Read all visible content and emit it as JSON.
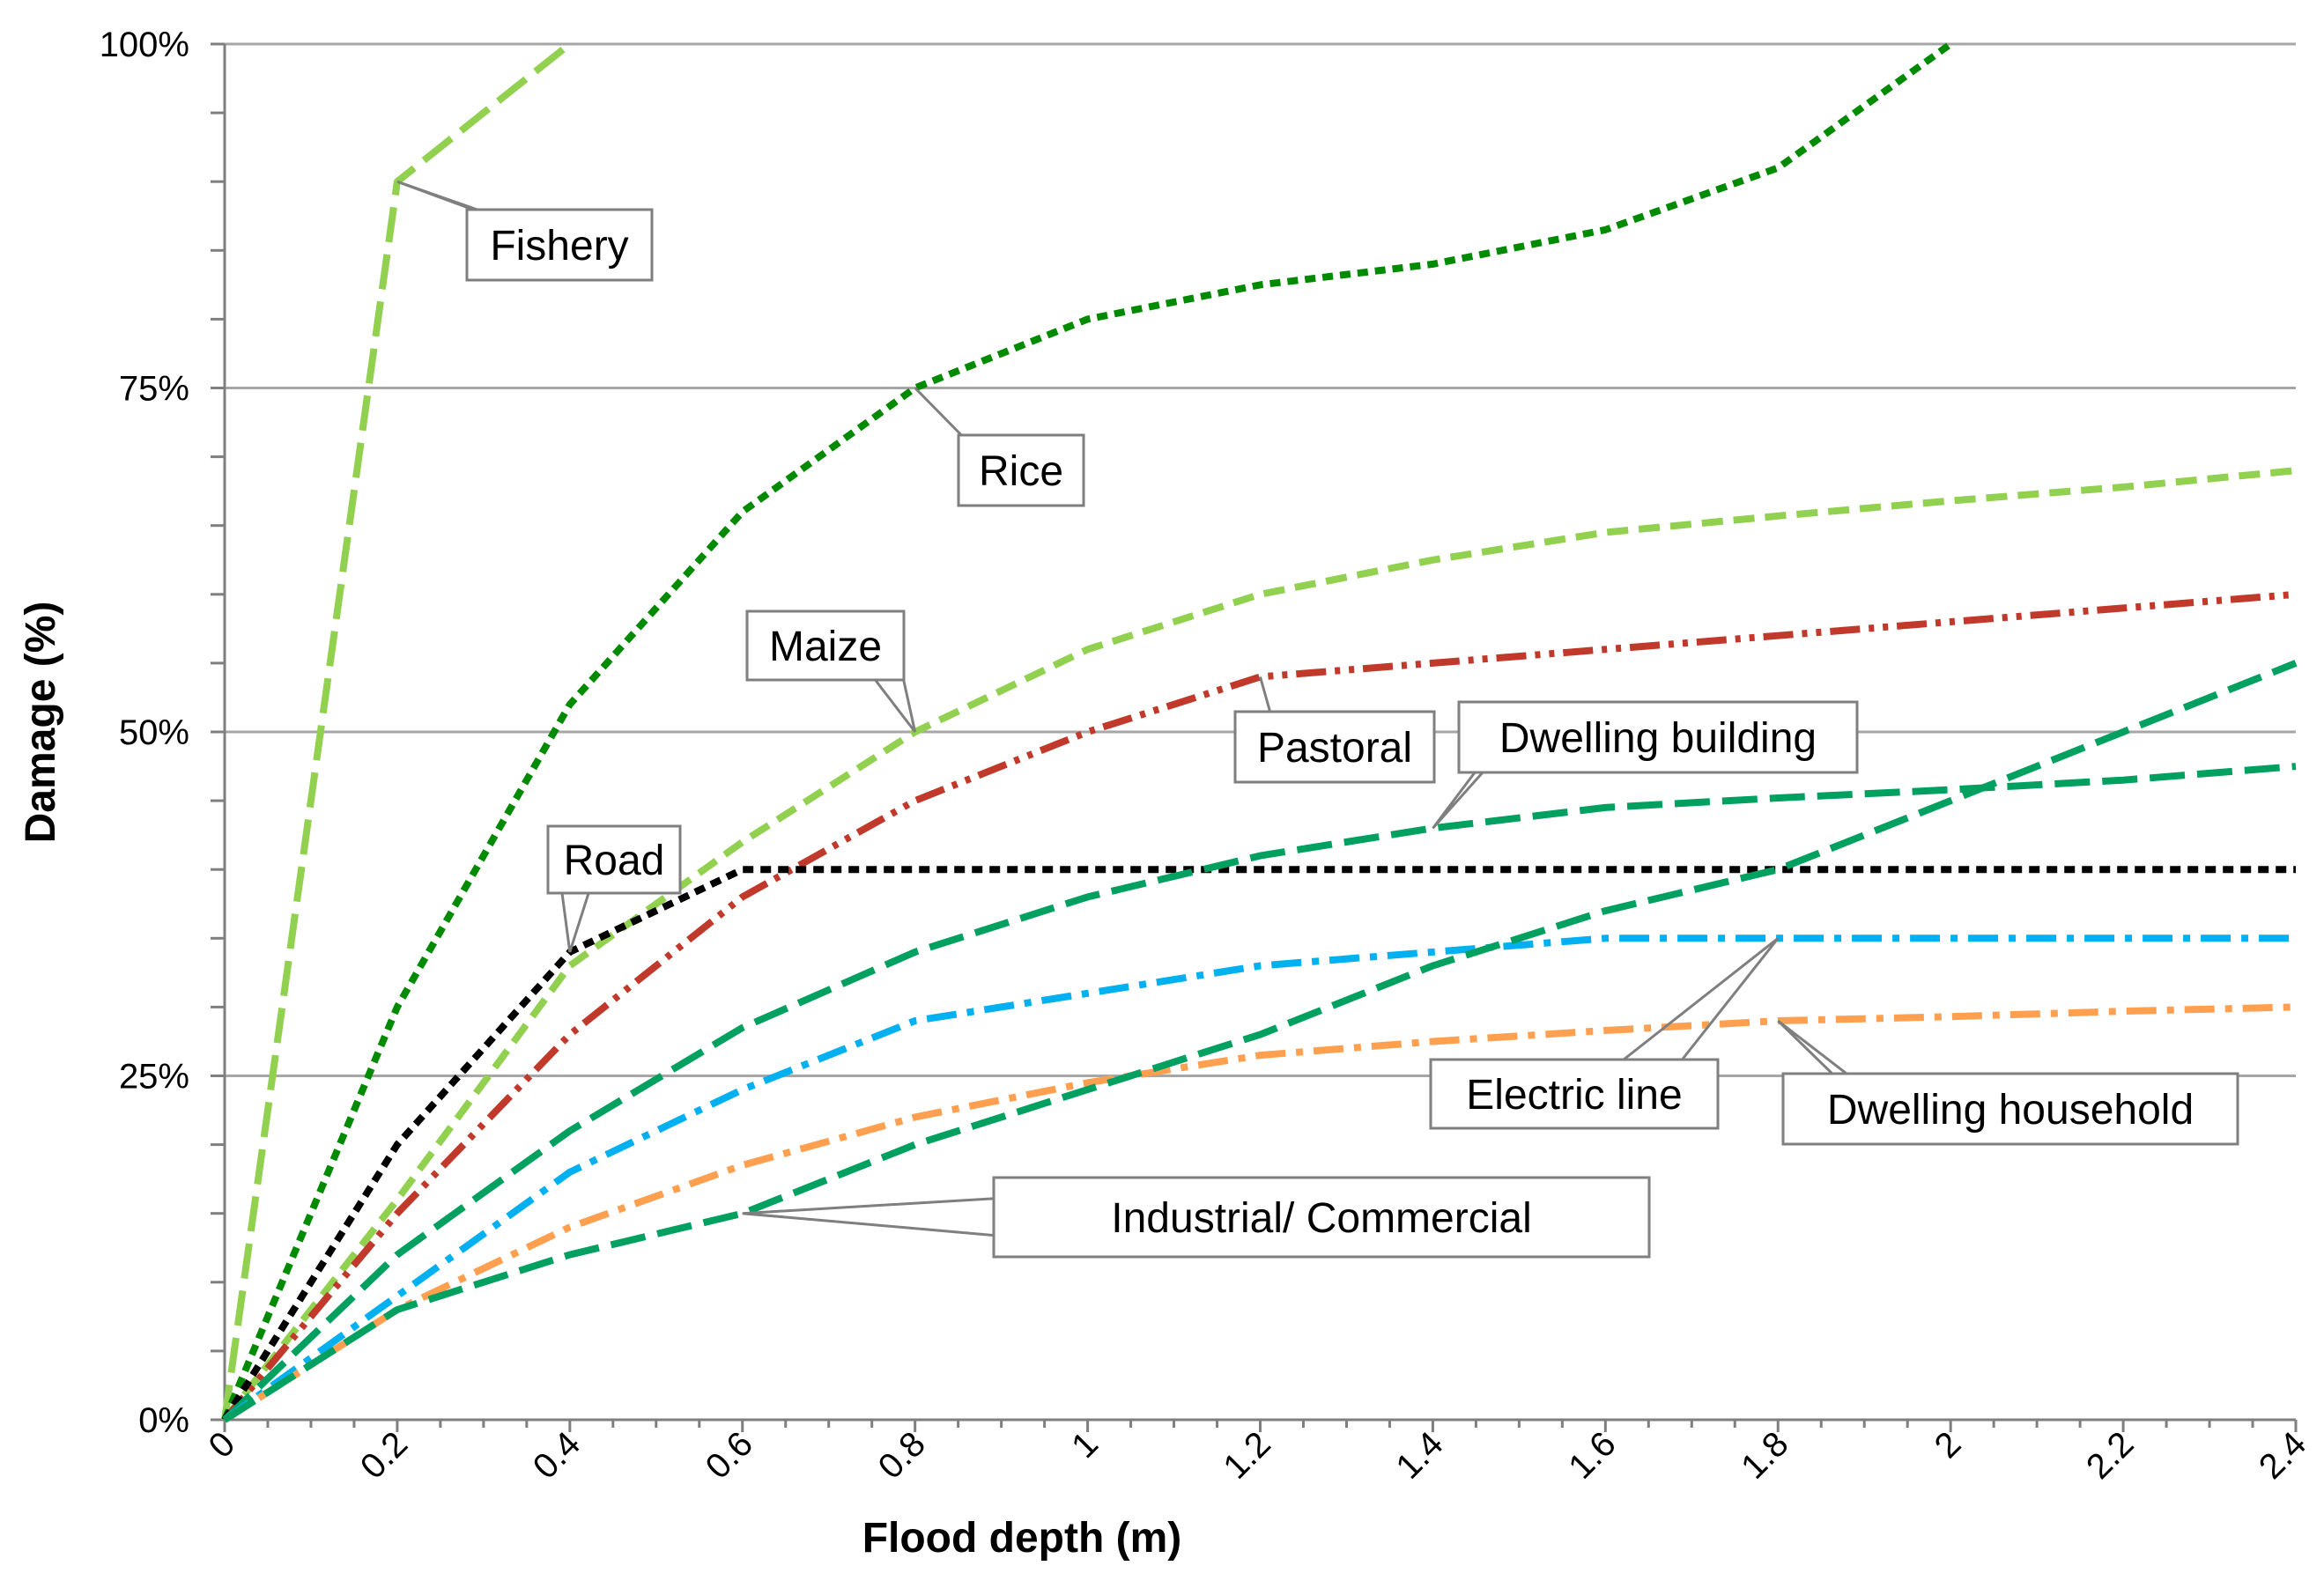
{
  "chart_data": {
    "type": "line",
    "title": "",
    "xlabel": "Flood depth (m)",
    "ylabel": "Damage (%)",
    "xlim": [
      0,
      2.4
    ],
    "ylim": [
      0,
      100
    ],
    "x_ticks": [
      "0",
      "0.2",
      "0.4",
      "0.6",
      "0.8",
      "1",
      "1.2",
      "1.4",
      "1.6",
      "1.8",
      "2",
      "2.2",
      "2.4"
    ],
    "y_ticks": [
      "0%",
      "25%",
      "50%",
      "75%",
      "100%"
    ],
    "grid": true,
    "series": [
      {
        "name": "Fishery",
        "color": "#92d050",
        "dash": "long",
        "x": [
          0,
          0.2,
          0.4
        ],
        "y": [
          0,
          90,
          100
        ]
      },
      {
        "name": "Rice",
        "color": "#008a00",
        "dash": "dotted",
        "x": [
          0,
          0.2,
          0.4,
          0.6,
          0.8,
          1.0,
          1.2,
          1.4,
          1.6,
          1.8,
          2.0
        ],
        "y": [
          0,
          30,
          52,
          66,
          75,
          80,
          82.5,
          84,
          86.5,
          91,
          100
        ]
      },
      {
        "name": "Maize",
        "color": "#92d050",
        "dash": "dash",
        "x": [
          0,
          0.2,
          0.4,
          0.6,
          0.8,
          1.0,
          1.2,
          1.4,
          1.6,
          1.8,
          2.0,
          2.2,
          2.4
        ],
        "y": [
          0,
          16,
          33,
          42,
          50,
          56,
          60,
          62.5,
          64.5,
          65.7,
          66.8,
          67.8,
          69
        ]
      },
      {
        "name": "Pastoral",
        "color": "#c0392b",
        "dash": "dashdotdot",
        "x": [
          0,
          0.2,
          0.4,
          0.6,
          0.8,
          1.0,
          1.2,
          1.4,
          1.6,
          1.8,
          2.0,
          2.2,
          2.4
        ],
        "y": [
          0,
          15,
          28,
          38,
          45,
          50,
          54,
          55,
          56,
          57,
          58,
          59,
          60
        ]
      },
      {
        "name": "Road",
        "color": "#000000",
        "dash": "dotted",
        "x": [
          0,
          0.2,
          0.4,
          0.6,
          0.8,
          1.0,
          1.2,
          1.4,
          1.6,
          1.8,
          2.0,
          2.2,
          2.4
        ],
        "y": [
          0,
          20,
          34,
          40,
          40,
          40,
          40,
          40,
          40,
          40,
          40,
          40,
          40
        ]
      },
      {
        "name": "Dwelling building",
        "color": "#00a060",
        "dash": "long",
        "x": [
          0,
          0.2,
          0.4,
          0.6,
          0.8,
          1.0,
          1.2,
          1.4,
          1.6,
          1.8,
          2.0,
          2.2,
          2.4
        ],
        "y": [
          0,
          12,
          21,
          28.5,
          34,
          38,
          41,
          43,
          44.5,
          45.2,
          45.8,
          46.5,
          47.5
        ]
      },
      {
        "name": "Electric line",
        "color": "#00b0f0",
        "dash": "dashdot",
        "x": [
          0,
          0.2,
          0.4,
          0.6,
          0.8,
          1.0,
          1.2,
          1.4,
          1.6,
          1.8,
          2.0,
          2.2,
          2.4
        ],
        "y": [
          0,
          9,
          18,
          24,
          29,
          31,
          33,
          34,
          35,
          35,
          35,
          35,
          35
        ]
      },
      {
        "name": "Dwelling household",
        "color": "#ffa050",
        "dash": "dashdot",
        "x": [
          0,
          0.2,
          0.4,
          0.6,
          0.8,
          1.0,
          1.2,
          1.4,
          1.6,
          1.8,
          2.0,
          2.2,
          2.4
        ],
        "y": [
          0,
          8,
          14,
          18.5,
          22,
          24.5,
          26.5,
          27.5,
          28.3,
          29,
          29.3,
          29.7,
          30
        ]
      },
      {
        "name": "Industrial/ Commercial",
        "color": "#00a060",
        "dash": "long",
        "x": [
          0,
          0.2,
          0.4,
          0.6,
          0.8,
          1.0,
          1.2,
          1.4,
          1.6,
          1.8,
          2.0,
          2.2,
          2.4
        ],
        "y": [
          0,
          8,
          12,
          15,
          20,
          24,
          28,
          33,
          37,
          40,
          45,
          50,
          55
        ]
      }
    ],
    "annotations": [
      {
        "text": "Fishery",
        "points_to": {
          "x": 0.2,
          "y": 90
        }
      },
      {
        "text": "Rice",
        "points_to": {
          "x": 0.8,
          "y": 75
        }
      },
      {
        "text": "Maize",
        "points_to": {
          "x": 0.8,
          "y": 50
        }
      },
      {
        "text": "Pastoral",
        "points_to": {
          "x": 1.2,
          "y": 54
        }
      },
      {
        "text": "Dwelling building",
        "points_to": {
          "x": 1.4,
          "y": 43
        }
      },
      {
        "text": "Road",
        "points_to": {
          "x": 0.4,
          "y": 34
        }
      },
      {
        "text": "Electric line",
        "points_to": {
          "x": 1.8,
          "y": 35
        }
      },
      {
        "text": "Dwelling household",
        "points_to": {
          "x": 1.8,
          "y": 29
        }
      },
      {
        "text": "Industrial/ Commercial",
        "points_to": {
          "x": 0.6,
          "y": 15
        }
      }
    ]
  }
}
